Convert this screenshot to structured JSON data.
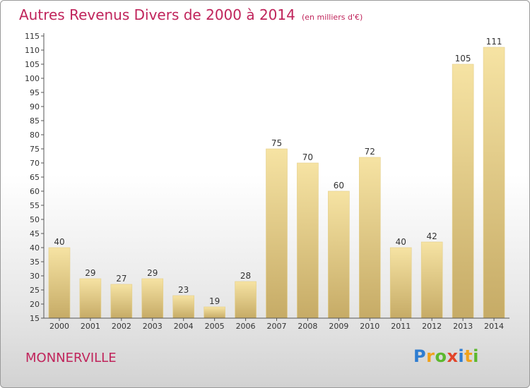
{
  "title": "Autres Revenus Divers de 2000 à 2014",
  "unit": "(en milliers d'€)",
  "commune": "MONNERVILLE",
  "logo_text": "Proxiti",
  "colors": {
    "title": "#c0245b",
    "bar_light": "#f6e3a3",
    "bar_dark": "#c9b06a",
    "axis": "#555555"
  },
  "chart_data": {
    "type": "bar",
    "title": "Autres Revenus Divers de 2000 à 2014",
    "categories": [
      "2000",
      "2001",
      "2002",
      "2003",
      "2004",
      "2005",
      "2006",
      "2007",
      "2008",
      "2009",
      "2010",
      "2011",
      "2012",
      "2013",
      "2014"
    ],
    "values": [
      40,
      29,
      27,
      29,
      23,
      19,
      28,
      75,
      70,
      60,
      72,
      40,
      42,
      105,
      111
    ],
    "ylim": [
      15,
      115
    ],
    "yticks": [
      15,
      20,
      25,
      30,
      35,
      40,
      45,
      50,
      55,
      60,
      65,
      70,
      75,
      80,
      85,
      90,
      95,
      100,
      105,
      110,
      115
    ],
    "grid": false,
    "legend": "none"
  }
}
